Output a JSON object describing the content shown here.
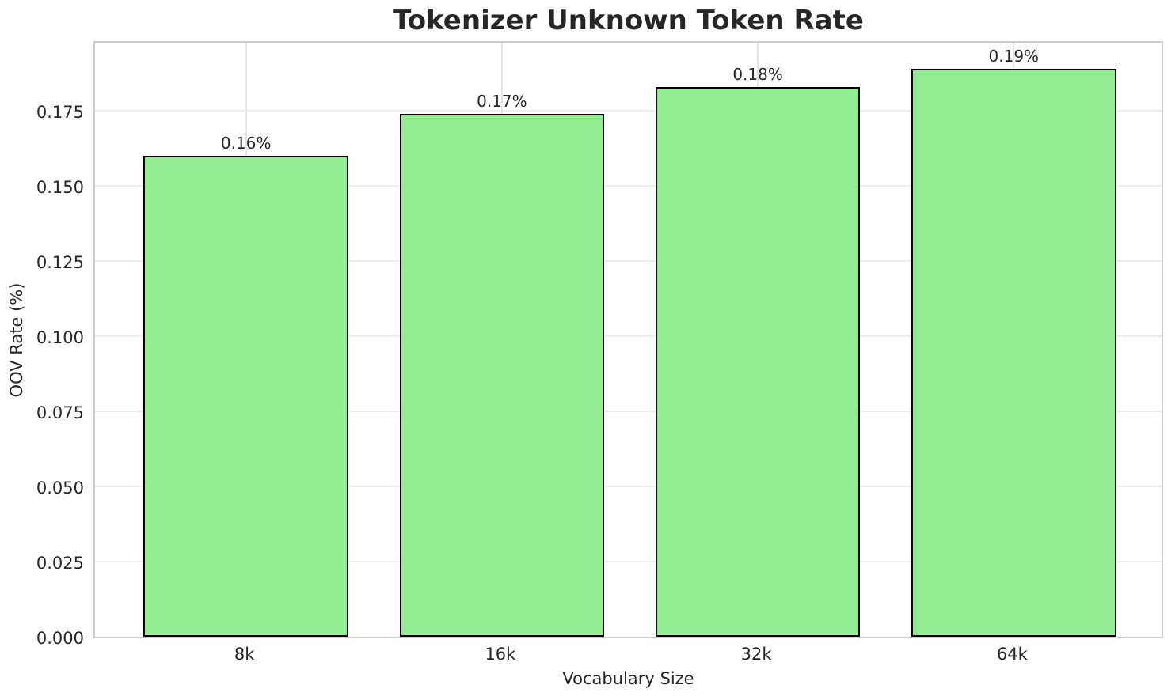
{
  "chart_data": {
    "type": "bar",
    "title": "Tokenizer Unknown Token Rate",
    "xlabel": "Vocabulary Size",
    "ylabel": "OOV Rate (%)",
    "categories": [
      "8k",
      "16k",
      "32k",
      "64k"
    ],
    "values": [
      0.16,
      0.174,
      0.183,
      0.189
    ],
    "bar_labels": [
      "0.16%",
      "0.17%",
      "0.18%",
      "0.19%"
    ],
    "y_tick_labels": [
      "0.000",
      "0.025",
      "0.050",
      "0.075",
      "0.100",
      "0.125",
      "0.150",
      "0.175"
    ],
    "y_ticks": [
      0,
      0.025,
      0.05,
      0.075,
      0.1,
      0.125,
      0.15,
      0.175
    ],
    "ylim": [
      0,
      0.1987
    ],
    "grid": true,
    "legend": false,
    "bar_width_fraction": 0.8,
    "colors": {
      "bar_fill": "#90EE90",
      "bar_edge": "#000000",
      "grid": "#ececec",
      "spine": "#cccccc",
      "text": "#262626"
    }
  }
}
